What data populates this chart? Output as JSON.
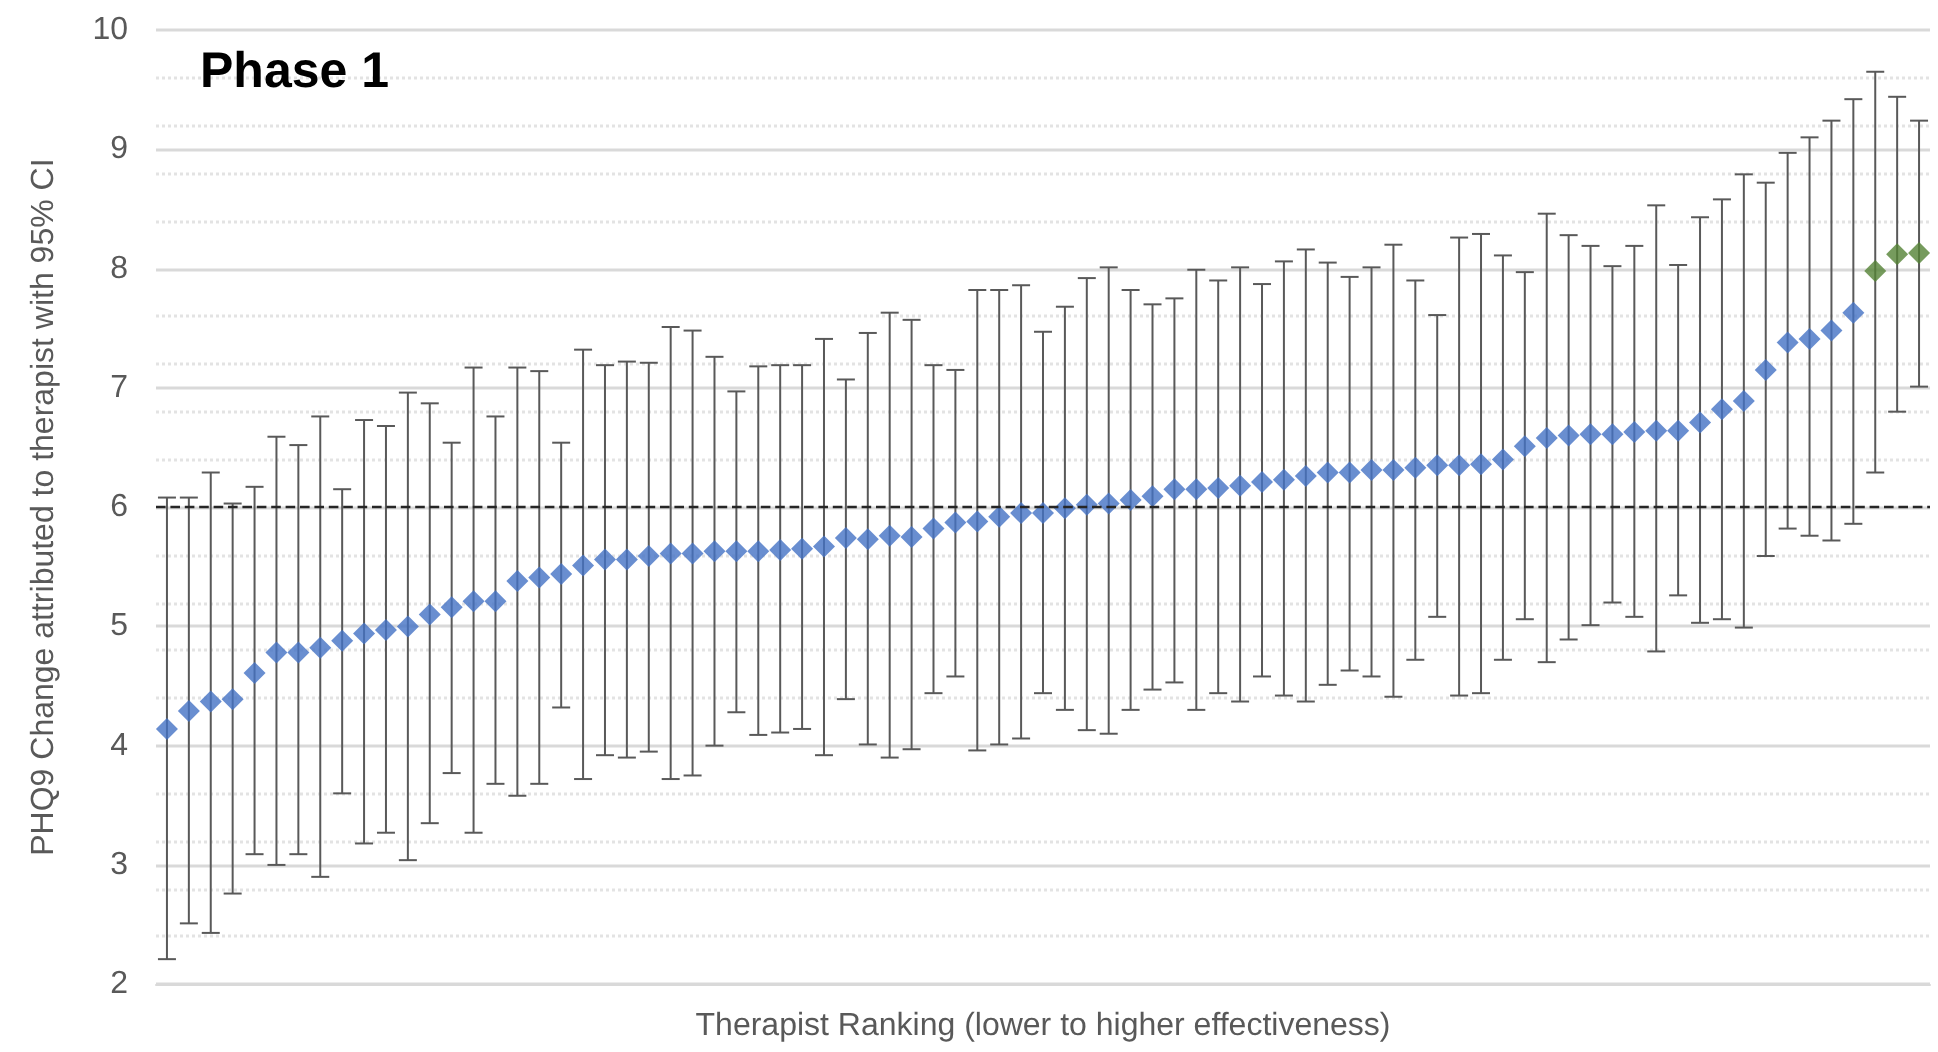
{
  "chart_data": {
    "type": "scatter",
    "title": "Phase 1",
    "xlabel": "Therapist Ranking (lower to higher effectiveness)",
    "ylabel": "PHQ9 Change attributed to therapist with 95% CI",
    "categories": [
      null,
      null,
      null,
      null,
      null,
      null,
      null,
      null,
      null,
      null,
      null,
      null,
      null,
      null,
      null,
      null,
      null,
      null,
      null,
      null,
      null,
      null,
      null,
      null,
      null,
      null,
      null,
      null,
      null,
      null,
      null,
      null,
      null,
      null,
      null,
      null,
      null,
      null,
      null,
      null,
      null,
      null,
      null,
      null,
      null,
      null,
      null,
      null,
      null,
      null,
      null,
      null,
      null,
      null,
      null,
      null,
      null,
      null,
      null,
      null,
      null,
      null,
      null,
      null,
      null,
      null,
      null,
      null,
      null,
      null,
      null,
      null,
      null,
      null,
      null,
      null,
      null,
      null,
      null,
      null,
      null
    ],
    "series": [
      {
        "color": "#4472c4",
        "values": [
          4.14,
          4.29,
          4.37,
          4.39,
          4.61,
          4.78,
          4.78,
          4.82,
          4.88,
          4.94,
          4.97,
          5.0,
          5.1,
          5.16,
          5.21,
          5.21,
          5.38,
          5.41,
          5.44,
          5.51,
          5.56,
          5.56,
          5.59,
          5.61,
          5.61,
          5.63,
          5.63,
          5.63,
          5.64,
          5.65,
          5.67,
          5.74,
          5.73,
          5.76,
          5.75,
          5.82,
          5.87,
          5.88,
          5.92,
          5.95,
          5.95,
          5.99,
          6.02,
          6.03,
          6.06,
          6.09,
          6.15,
          6.15,
          6.16,
          6.18,
          6.21,
          6.23,
          6.26,
          6.29,
          6.29,
          6.31,
          6.31,
          6.33,
          6.35,
          6.35,
          6.36,
          6.4,
          6.51,
          6.58,
          6.6,
          6.61,
          6.61,
          6.63,
          6.64,
          6.64,
          6.71,
          6.82,
          6.89,
          7.15,
          7.38,
          7.41,
          7.48,
          7.63,
          null,
          null,
          null
        ],
        "errors": [
          [
            2.21,
            6.08
          ],
          [
            2.51,
            6.08
          ],
          [
            2.43,
            6.29
          ],
          [
            2.76,
            6.03
          ],
          [
            3.09,
            6.17
          ],
          [
            3.0,
            6.59
          ],
          [
            3.09,
            6.52
          ],
          [
            2.9,
            6.76
          ],
          [
            3.6,
            6.15
          ],
          [
            3.18,
            6.73
          ],
          [
            3.27,
            6.68
          ],
          [
            3.04,
            6.96
          ],
          [
            3.35,
            6.87
          ],
          [
            3.77,
            6.54
          ],
          [
            3.27,
            7.17
          ],
          [
            3.68,
            6.76
          ],
          [
            3.58,
            7.17
          ],
          [
            3.68,
            7.14
          ],
          [
            4.32,
            6.54
          ],
          [
            3.72,
            7.32
          ],
          [
            3.92,
            7.19
          ],
          [
            3.9,
            7.22
          ],
          [
            3.95,
            7.21
          ],
          [
            3.72,
            7.51
          ],
          [
            3.75,
            7.48
          ],
          [
            4.0,
            7.26
          ],
          [
            4.28,
            6.97
          ],
          [
            4.09,
            7.18
          ],
          [
            4.11,
            7.19
          ],
          [
            4.14,
            7.19
          ],
          [
            3.92,
            7.41
          ],
          [
            4.39,
            7.07
          ],
          [
            4.01,
            7.46
          ],
          [
            3.9,
            7.63
          ],
          [
            3.97,
            7.57
          ],
          [
            4.44,
            7.19
          ],
          [
            4.58,
            7.15
          ],
          [
            3.96,
            7.82
          ],
          [
            4.01,
            7.82
          ],
          [
            4.06,
            7.86
          ],
          [
            4.44,
            7.47
          ],
          [
            4.3,
            7.68
          ],
          [
            4.13,
            7.92
          ],
          [
            4.1,
            8.01
          ],
          [
            4.3,
            7.82
          ],
          [
            4.47,
            7.7
          ],
          [
            4.53,
            7.75
          ],
          [
            4.3,
            7.99
          ],
          [
            4.44,
            7.9
          ],
          [
            4.37,
            8.01
          ],
          [
            4.58,
            7.87
          ],
          [
            4.42,
            8.06
          ],
          [
            4.37,
            8.16
          ],
          [
            4.51,
            8.05
          ],
          [
            4.63,
            7.93
          ],
          [
            4.58,
            8.01
          ],
          [
            4.41,
            8.2
          ],
          [
            4.72,
            7.9
          ],
          [
            5.08,
            7.61
          ],
          [
            4.42,
            8.26
          ],
          [
            4.44,
            8.29
          ],
          [
            4.72,
            8.11
          ],
          [
            5.06,
            7.97
          ],
          [
            4.7,
            8.46
          ],
          [
            4.89,
            8.28
          ],
          [
            5.01,
            8.19
          ],
          [
            5.2,
            8.02
          ],
          [
            5.08,
            8.19
          ],
          [
            4.79,
            8.53
          ],
          [
            5.26,
            8.03
          ],
          [
            5.03,
            8.43
          ],
          [
            5.06,
            8.58
          ],
          [
            4.99,
            8.79
          ],
          [
            5.59,
            8.72
          ],
          [
            5.82,
            8.97
          ],
          [
            5.76,
            9.1
          ],
          [
            5.72,
            9.24
          ],
          [
            5.86,
            9.42
          ],
          null,
          null,
          null
        ]
      },
      {
        "color": "#548235",
        "values": [
          null,
          null,
          null,
          null,
          null,
          null,
          null,
          null,
          null,
          null,
          null,
          null,
          null,
          null,
          null,
          null,
          null,
          null,
          null,
          null,
          null,
          null,
          null,
          null,
          null,
          null,
          null,
          null,
          null,
          null,
          null,
          null,
          null,
          null,
          null,
          null,
          null,
          null,
          null,
          null,
          null,
          null,
          null,
          null,
          null,
          null,
          null,
          null,
          null,
          null,
          null,
          null,
          null,
          null,
          null,
          null,
          null,
          null,
          null,
          null,
          null,
          null,
          null,
          null,
          null,
          null,
          null,
          null,
          null,
          null,
          null,
          null,
          null,
          null,
          null,
          null,
          null,
          null,
          7.98,
          8.12,
          8.13
        ],
        "errors": [
          null,
          null,
          null,
          null,
          null,
          null,
          null,
          null,
          null,
          null,
          null,
          null,
          null,
          null,
          null,
          null,
          null,
          null,
          null,
          null,
          null,
          null,
          null,
          null,
          null,
          null,
          null,
          null,
          null,
          null,
          null,
          null,
          null,
          null,
          null,
          null,
          null,
          null,
          null,
          null,
          null,
          null,
          null,
          null,
          null,
          null,
          null,
          null,
          null,
          null,
          null,
          null,
          null,
          null,
          null,
          null,
          null,
          null,
          null,
          null,
          null,
          null,
          null,
          null,
          null,
          null,
          null,
          null,
          null,
          null,
          null,
          null,
          null,
          null,
          null,
          null,
          null,
          null,
          [
            6.29,
            9.65
          ],
          [
            6.8,
            9.44
          ],
          [
            7.01,
            9.24
          ]
        ]
      }
    ],
    "ylim": [
      2,
      10
    ],
    "yticks": [
      2,
      3,
      4,
      5,
      6,
      7,
      8,
      9,
      10
    ],
    "grid": "y",
    "marker": "diamond",
    "ref_lines": [
      {
        "axis": "y",
        "value": 6,
        "color": "#262626",
        "line_style": "dashed"
      }
    ]
  }
}
